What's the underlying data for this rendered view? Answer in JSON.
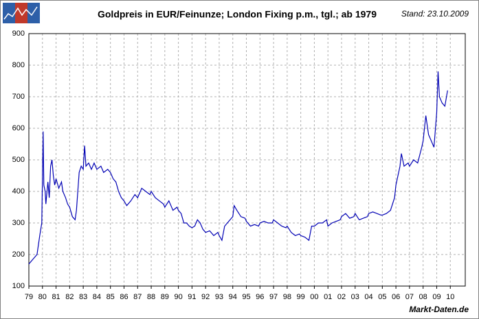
{
  "chart_data": {
    "type": "line",
    "title": "Goldpreis in EUR/Feinunze; London Fixing p.m., tgl.; ab 1979",
    "subtitle": "Stand: 23.10.2009",
    "source": "Markt-Daten.de",
    "grid": true,
    "xlim": [
      1979,
      2011.1
    ],
    "ylim": [
      100,
      900
    ],
    "yticks": [
      100,
      200,
      300,
      400,
      500,
      600,
      700,
      800,
      900
    ],
    "xticks": [
      {
        "value": 1979,
        "label": "79"
      },
      {
        "value": 1980,
        "label": "80"
      },
      {
        "value": 1981,
        "label": "81"
      },
      {
        "value": 1982,
        "label": "82"
      },
      {
        "value": 1983,
        "label": "83"
      },
      {
        "value": 1984,
        "label": "84"
      },
      {
        "value": 1985,
        "label": "85"
      },
      {
        "value": 1986,
        "label": "86"
      },
      {
        "value": 1987,
        "label": "87"
      },
      {
        "value": 1988,
        "label": "88"
      },
      {
        "value": 1989,
        "label": "89"
      },
      {
        "value": 1990,
        "label": "90"
      },
      {
        "value": 1991,
        "label": "91"
      },
      {
        "value": 1992,
        "label": "92"
      },
      {
        "value": 1993,
        "label": "93"
      },
      {
        "value": 1994,
        "label": "94"
      },
      {
        "value": 1995,
        "label": "95"
      },
      {
        "value": 1996,
        "label": "96"
      },
      {
        "value": 1997,
        "label": "97"
      },
      {
        "value": 1998,
        "label": "98"
      },
      {
        "value": 1999,
        "label": "99"
      },
      {
        "value": 2000,
        "label": "00"
      },
      {
        "value": 2001,
        "label": "01"
      },
      {
        "value": 2002,
        "label": "02"
      },
      {
        "value": 2003,
        "label": "03"
      },
      {
        "value": 2004,
        "label": "04"
      },
      {
        "value": 2005,
        "label": "05"
      },
      {
        "value": 2006,
        "label": "06"
      },
      {
        "value": 2007,
        "label": "07"
      },
      {
        "value": 2008,
        "label": "08"
      },
      {
        "value": 2009,
        "label": "09"
      },
      {
        "value": 2010,
        "label": "10"
      }
    ],
    "series": [
      {
        "color": "#0000b4",
        "x": [
          1979.0,
          1979.3,
          1979.6,
          1979.8,
          1979.95,
          1980.05,
          1980.1,
          1980.2,
          1980.25,
          1980.4,
          1980.5,
          1980.6,
          1980.7,
          1980.8,
          1980.9,
          1981.0,
          1981.2,
          1981.4,
          1981.5,
          1981.7,
          1981.85,
          1982.0,
          1982.2,
          1982.4,
          1982.5,
          1982.7,
          1982.85,
          1983.0,
          1983.1,
          1983.2,
          1983.4,
          1983.6,
          1983.8,
          1984.0,
          1984.3,
          1984.5,
          1984.8,
          1985.0,
          1985.2,
          1985.4,
          1985.6,
          1985.8,
          1986.0,
          1986.2,
          1986.5,
          1986.8,
          1987.0,
          1987.3,
          1987.6,
          1987.9,
          1988.0,
          1988.3,
          1988.6,
          1988.9,
          1989.0,
          1989.3,
          1989.6,
          1989.9,
          1990.0,
          1990.2,
          1990.4,
          1990.6,
          1990.8,
          1991.0,
          1991.2,
          1991.4,
          1991.6,
          1991.8,
          1992.0,
          1992.3,
          1992.6,
          1992.9,
          1993.0,
          1993.2,
          1993.4,
          1993.6,
          1993.8,
          1994.0,
          1994.1,
          1994.3,
          1994.6,
          1994.9,
          1995.0,
          1995.3,
          1995.6,
          1995.9,
          1996.0,
          1996.3,
          1996.6,
          1996.9,
          1997.0,
          1997.3,
          1997.6,
          1997.9,
          1998.0,
          1998.3,
          1998.6,
          1998.9,
          1999.0,
          1999.3,
          1999.6,
          1999.8,
          2000.0,
          2000.3,
          2000.6,
          2000.9,
          2001.0,
          2001.3,
          2001.6,
          2001.9,
          2002.0,
          2002.3,
          2002.6,
          2002.9,
          2003.0,
          2003.3,
          2003.6,
          2003.9,
          2004.0,
          2004.3,
          2004.6,
          2004.9,
          2005.0,
          2005.3,
          2005.6,
          2005.9,
          2006.0,
          2006.3,
          2006.4,
          2006.6,
          2006.9,
          2007.0,
          2007.3,
          2007.6,
          2007.9,
          2008.0,
          2008.2,
          2008.4,
          2008.6,
          2008.8,
          2009.0,
          2009.1,
          2009.2,
          2009.4,
          2009.6,
          2009.8
        ],
        "values": [
          170,
          185,
          200,
          260,
          300,
          590,
          420,
          400,
          360,
          430,
          380,
          480,
          500,
          450,
          420,
          440,
          410,
          430,
          400,
          380,
          360,
          350,
          320,
          310,
          340,
          460,
          480,
          470,
          545,
          480,
          490,
          470,
          490,
          470,
          480,
          460,
          470,
          460,
          440,
          430,
          400,
          380,
          370,
          355,
          370,
          390,
          380,
          410,
          400,
          390,
          400,
          380,
          370,
          360,
          350,
          370,
          340,
          350,
          340,
          330,
          300,
          300,
          290,
          285,
          290,
          310,
          300,
          280,
          270,
          275,
          260,
          270,
          260,
          245,
          290,
          300,
          310,
          320,
          355,
          340,
          320,
          315,
          305,
          290,
          295,
          290,
          300,
          305,
          300,
          300,
          310,
          300,
          290,
          285,
          290,
          270,
          260,
          265,
          260,
          255,
          245,
          290,
          290,
          300,
          300,
          310,
          290,
          300,
          305,
          310,
          320,
          330,
          315,
          320,
          330,
          310,
          315,
          320,
          330,
          335,
          330,
          325,
          325,
          330,
          340,
          380,
          420,
          480,
          520,
          480,
          490,
          480,
          500,
          490,
          540,
          560,
          640,
          580,
          560,
          540,
          650,
          780,
          700,
          680,
          670,
          720
        ]
      }
    ]
  }
}
